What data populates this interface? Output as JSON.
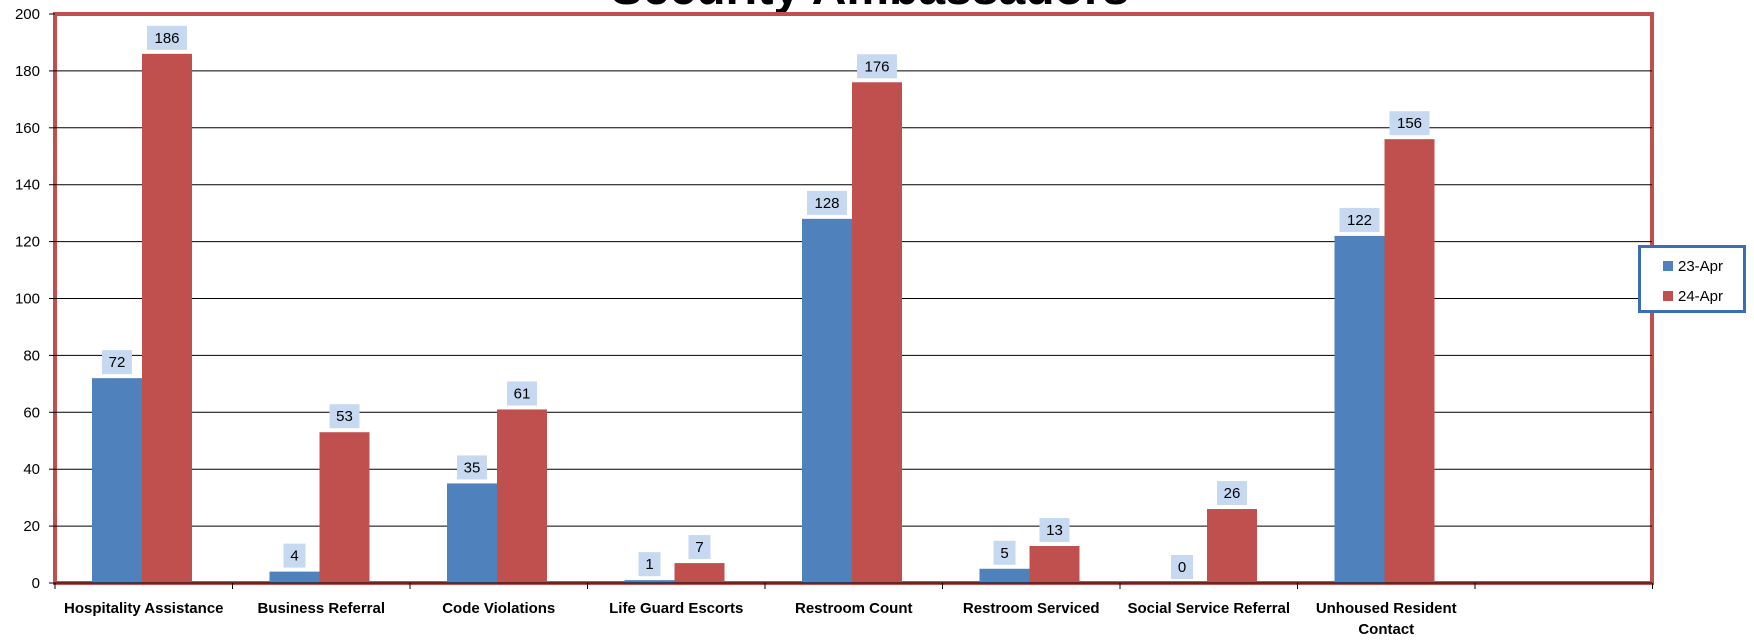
{
  "chart_data": {
    "type": "bar",
    "title": "Security Ambassadors",
    "categories": [
      "Hospitality Assistance",
      "Business Referral",
      "Code Violations",
      "Life Guard Escorts",
      "Restroom Count",
      "Restroom Serviced",
      "Social Service Referral",
      "Unhoused Resident Contact"
    ],
    "series": [
      {
        "name": "23-Apr",
        "values": [
          72,
          4,
          35,
          1,
          128,
          5,
          0,
          122
        ],
        "color": "#4f81bd"
      },
      {
        "name": "24-Apr",
        "values": [
          186,
          53,
          61,
          7,
          176,
          13,
          26,
          156
        ],
        "color": "#c0504d"
      }
    ],
    "ylim": [
      0,
      200
    ],
    "yticks": [
      0,
      20,
      40,
      60,
      80,
      100,
      120,
      140,
      160,
      180,
      200
    ],
    "grid": true,
    "legend": "right",
    "colors": {
      "plot_border": "#c0504d",
      "legend_border": "#3a6eb5",
      "label_box": "#c6d9f1"
    }
  }
}
